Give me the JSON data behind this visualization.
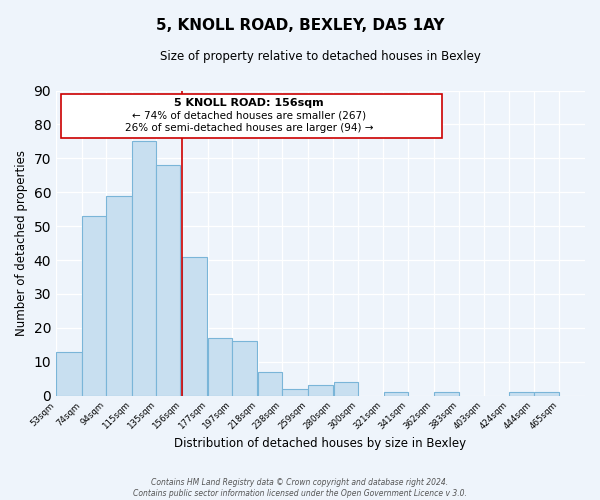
{
  "title": "5, KNOLL ROAD, BEXLEY, DA5 1AY",
  "subtitle": "Size of property relative to detached houses in Bexley",
  "xlabel": "Distribution of detached houses by size in Bexley",
  "ylabel": "Number of detached properties",
  "footer_line1": "Contains HM Land Registry data © Crown copyright and database right 2024.",
  "footer_line2": "Contains public sector information licensed under the Open Government Licence v 3.0.",
  "bar_left_edges": [
    53,
    74,
    94,
    115,
    135,
    156,
    177,
    197,
    218,
    238,
    259,
    280,
    300,
    321,
    341,
    362,
    383,
    403,
    424,
    444
  ],
  "bar_widths": [
    21,
    20,
    21,
    20,
    20,
    21,
    20,
    21,
    20,
    21,
    21,
    20,
    21,
    20,
    21,
    21,
    20,
    21,
    20,
    21
  ],
  "bar_heights": [
    13,
    53,
    59,
    75,
    68,
    41,
    17,
    16,
    7,
    2,
    3,
    4,
    0,
    1,
    0,
    1,
    0,
    0,
    1,
    1
  ],
  "bar_color": "#c8dff0",
  "bar_edge_color": "#7ab5d8",
  "marker_x": 156,
  "marker_color": "#cc0000",
  "ylim": [
    0,
    90
  ],
  "yticks": [
    0,
    10,
    20,
    30,
    40,
    50,
    60,
    70,
    80,
    90
  ],
  "xlim": [
    53,
    486
  ],
  "tick_labels": [
    "53sqm",
    "74sqm",
    "94sqm",
    "115sqm",
    "135sqm",
    "156sqm",
    "177sqm",
    "197sqm",
    "218sqm",
    "238sqm",
    "259sqm",
    "280sqm",
    "300sqm",
    "321sqm",
    "341sqm",
    "362sqm",
    "383sqm",
    "403sqm",
    "424sqm",
    "444sqm",
    "465sqm"
  ],
  "tick_positions": [
    53,
    74,
    94,
    115,
    135,
    156,
    177,
    197,
    218,
    238,
    259,
    280,
    300,
    321,
    341,
    362,
    383,
    403,
    424,
    444,
    465
  ],
  "annotation_title": "5 KNOLL ROAD: 156sqm",
  "annotation_line1": "← 74% of detached houses are smaller (267)",
  "annotation_line2": "26% of semi-detached houses are larger (94) →",
  "bg_color": "#eef4fb"
}
